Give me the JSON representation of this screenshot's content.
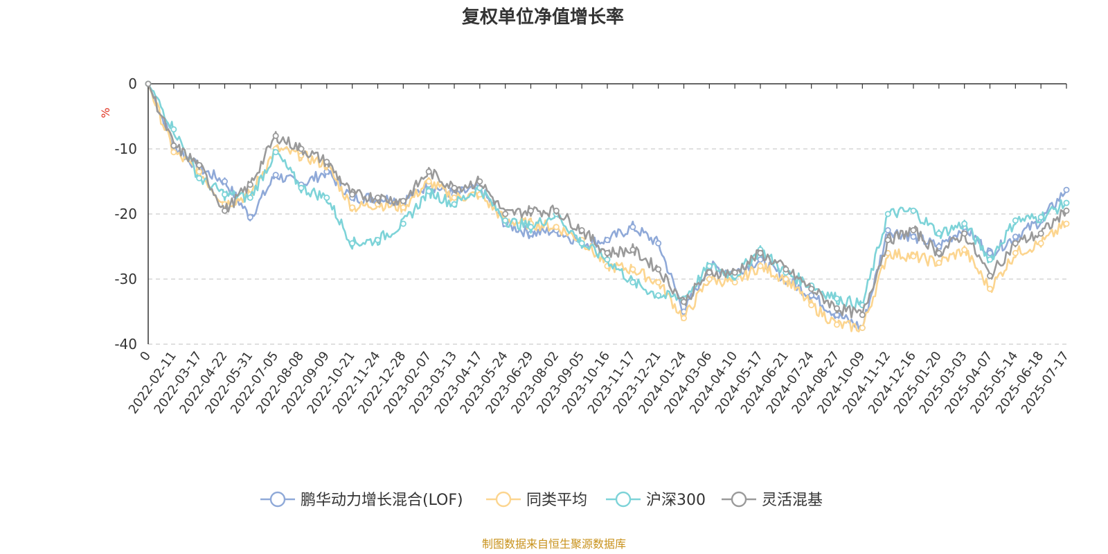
{
  "chart_data": {
    "type": "line",
    "title": "复权单位净值增长率",
    "ylabel": "%",
    "ylim": [
      -40,
      0
    ],
    "yticks": [
      0,
      -10,
      -20,
      -30,
      -40
    ],
    "grid": true,
    "legend_position": "bottom",
    "source_note": "制图数据来自恒生聚源数据库",
    "x": [
      "0",
      "2022-02-11",
      "2022-03-17",
      "2022-04-22",
      "2022-05-31",
      "2022-07-05",
      "2022-08-08",
      "2022-09-09",
      "2022-10-21",
      "2022-11-24",
      "2022-12-28",
      "2023-02-07",
      "2023-03-13",
      "2023-04-17",
      "2023-05-24",
      "2023-06-29",
      "2023-08-02",
      "2023-09-05",
      "2023-10-16",
      "2023-11-17",
      "2023-12-21",
      "2024-01-24",
      "2024-03-06",
      "2024-04-10",
      "2024-05-17",
      "2024-06-21",
      "2024-07-24",
      "2024-08-27",
      "2024-10-09",
      "2024-11-12",
      "2024-12-16",
      "2025-01-20",
      "2025-03-03",
      "2025-04-07",
      "2025-05-14",
      "2025-06-18",
      "2025-07-17"
    ],
    "series": [
      {
        "name": "鹏华动力增长混合(LOF)",
        "color": "#8fa9d8",
        "values": [
          0,
          -9.5,
          -13,
          -15,
          -20.5,
          -14,
          -15.5,
          -13.5,
          -17.5,
          -17.5,
          -18,
          -15.5,
          -17,
          -16,
          -21.5,
          -23,
          -22.5,
          -24.5,
          -24,
          -22,
          -24.5,
          -35,
          -28,
          -29,
          -27,
          -30,
          -32.5,
          -35.5,
          -37.5,
          -22.5,
          -23.5,
          -25,
          -22,
          -26,
          -23.5,
          -21,
          -16.3
        ]
      },
      {
        "name": "同类平均",
        "color": "#fcd58f",
        "values": [
          0,
          -10.5,
          -13.5,
          -18.5,
          -17,
          -10,
          -11,
          -12.5,
          -19,
          -18.5,
          -19,
          -15,
          -17.5,
          -17,
          -21,
          -21.5,
          -22,
          -24,
          -28,
          -28.5,
          -30.5,
          -36,
          -30,
          -30.5,
          -28,
          -30,
          -34,
          -37,
          -37.5,
          -26,
          -26.5,
          -27.5,
          -25.5,
          -31.5,
          -26,
          -24.5,
          -21.5
        ]
      },
      {
        "name": "沪深300",
        "color": "#7dd3d8",
        "values": [
          0,
          -7,
          -14.5,
          -17,
          -17.5,
          -10.5,
          -16,
          -17.5,
          -24.5,
          -24,
          -21.5,
          -16.5,
          -18.5,
          -16,
          -21,
          -22,
          -20,
          -24.5,
          -27,
          -30.5,
          -32.5,
          -33,
          -28,
          -29.5,
          -25.5,
          -29,
          -31,
          -33,
          -34,
          -20,
          -19.5,
          -23,
          -21.5,
          -27,
          -21,
          -20.5,
          -18.3
        ]
      },
      {
        "name": "灵活混基",
        "color": "#9a9a9a",
        "values": [
          0,
          -9.5,
          -12.5,
          -19.5,
          -15.5,
          -8,
          -10,
          -12,
          -17,
          -17.5,
          -18,
          -13.5,
          -16,
          -15,
          -20,
          -19.5,
          -19.5,
          -22.5,
          -26,
          -25.5,
          -28.5,
          -33.5,
          -29,
          -29,
          -26,
          -28.5,
          -31.5,
          -34.5,
          -35.5,
          -24,
          -22.5,
          -26,
          -23,
          -29.5,
          -24.5,
          -23,
          -19.5
        ]
      }
    ]
  }
}
